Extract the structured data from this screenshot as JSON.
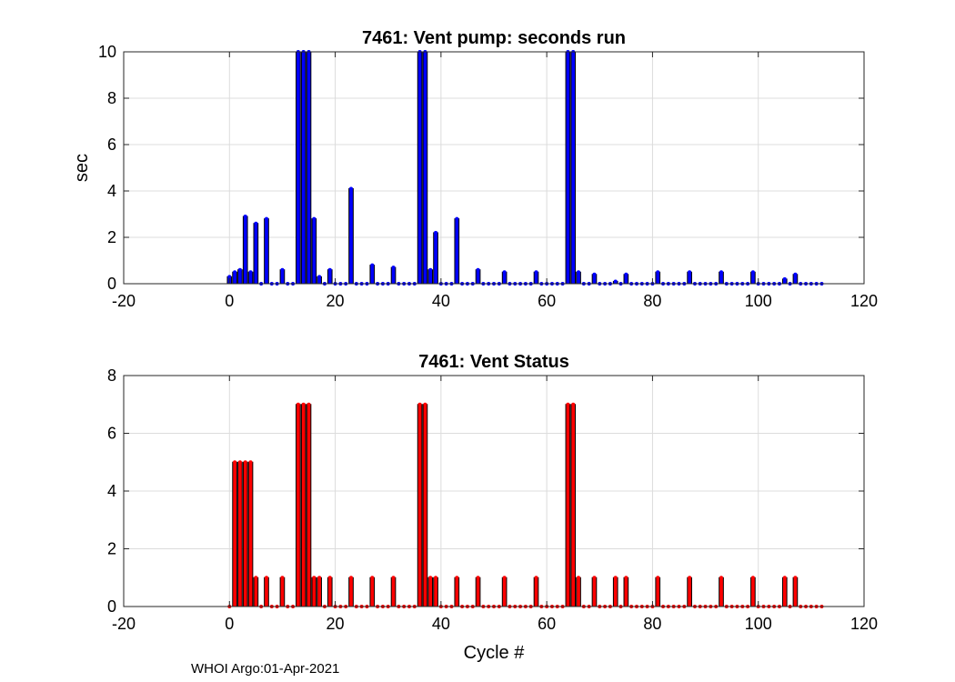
{
  "chart_data": [
    {
      "type": "bar",
      "title": "7461: Vent pump: seconds run",
      "xlabel": "",
      "ylabel": "sec",
      "xlim": [
        -20,
        120
      ],
      "ylim": [
        0,
        10
      ],
      "xticks": [
        "-20",
        "0",
        "20",
        "40",
        "60",
        "80",
        "100",
        "120"
      ],
      "yticks": [
        "0",
        "2",
        "4",
        "6",
        "8",
        "10"
      ],
      "grid": true,
      "color": "#0000ff",
      "x": [
        0,
        1,
        2,
        3,
        4,
        5,
        6,
        7,
        8,
        9,
        10,
        11,
        12,
        13,
        14,
        15,
        16,
        17,
        18,
        19,
        20,
        21,
        22,
        23,
        24,
        25,
        26,
        27,
        28,
        29,
        30,
        31,
        32,
        33,
        34,
        35,
        36,
        37,
        38,
        39,
        40,
        41,
        42,
        43,
        44,
        45,
        46,
        47,
        48,
        49,
        50,
        51,
        52,
        53,
        54,
        55,
        56,
        57,
        58,
        59,
        60,
        61,
        62,
        63,
        64,
        65,
        66,
        67,
        68,
        69,
        70,
        71,
        72,
        73,
        74,
        75,
        76,
        77,
        78,
        79,
        80,
        81,
        82,
        83,
        84,
        85,
        86,
        87,
        88,
        89,
        90,
        91,
        92,
        93,
        94,
        95,
        96,
        97,
        98,
        99,
        100,
        101,
        102,
        103,
        104,
        105,
        106,
        107,
        108,
        109,
        110,
        111,
        112
      ],
      "values": [
        0.3,
        0.5,
        0.6,
        2.9,
        0.5,
        2.6,
        0,
        2.8,
        0,
        0,
        0.6,
        0,
        0,
        10,
        10,
        10,
        2.8,
        0.3,
        0,
        0.6,
        0,
        0,
        0,
        4.1,
        0,
        0,
        0,
        0.8,
        0,
        0,
        0,
        0.7,
        0,
        0,
        0,
        0,
        10,
        10,
        0.6,
        2.2,
        0,
        0,
        0,
        2.8,
        0,
        0,
        0,
        0.6,
        0,
        0,
        0,
        0,
        0.5,
        0,
        0,
        0,
        0,
        0,
        0.5,
        0,
        0,
        0,
        0,
        0,
        10,
        10,
        0.5,
        0,
        0,
        0.4,
        0,
        0,
        0,
        0.1,
        0,
        0.4,
        0,
        0,
        0,
        0,
        0,
        0.5,
        0,
        0,
        0,
        0,
        0,
        0.5,
        0,
        0,
        0,
        0,
        0,
        0.5,
        0,
        0,
        0,
        0,
        0,
        0.5,
        0,
        0,
        0,
        0,
        0,
        0.2,
        0,
        0.4,
        0,
        0,
        0,
        0,
        0
      ]
    },
    {
      "type": "bar",
      "title": "7461: Vent Status",
      "xlabel": "Cycle #",
      "ylabel": "",
      "xlim": [
        -20,
        120
      ],
      "ylim": [
        0,
        8
      ],
      "xticks": [
        "-20",
        "0",
        "20",
        "40",
        "60",
        "80",
        "100",
        "120"
      ],
      "yticks": [
        "0",
        "2",
        "4",
        "6",
        "8"
      ],
      "grid": true,
      "color": "#ff0000",
      "x": [
        0,
        1,
        2,
        3,
        4,
        5,
        6,
        7,
        8,
        9,
        10,
        11,
        12,
        13,
        14,
        15,
        16,
        17,
        18,
        19,
        20,
        21,
        22,
        23,
        24,
        25,
        26,
        27,
        28,
        29,
        30,
        31,
        32,
        33,
        34,
        35,
        36,
        37,
        38,
        39,
        40,
        41,
        42,
        43,
        44,
        45,
        46,
        47,
        48,
        49,
        50,
        51,
        52,
        53,
        54,
        55,
        56,
        57,
        58,
        59,
        60,
        61,
        62,
        63,
        64,
        65,
        66,
        67,
        68,
        69,
        70,
        71,
        72,
        73,
        74,
        75,
        76,
        77,
        78,
        79,
        80,
        81,
        82,
        83,
        84,
        85,
        86,
        87,
        88,
        89,
        90,
        91,
        92,
        93,
        94,
        95,
        96,
        97,
        98,
        99,
        100,
        101,
        102,
        103,
        104,
        105,
        106,
        107,
        108,
        109,
        110,
        111,
        112
      ],
      "values": [
        0,
        5,
        5,
        5,
        5,
        1,
        0,
        1,
        0,
        0,
        1,
        0,
        0,
        7,
        7,
        7,
        1,
        1,
        0,
        1,
        0,
        0,
        0,
        1,
        0,
        0,
        0,
        1,
        0,
        0,
        0,
        1,
        0,
        0,
        0,
        0,
        7,
        7,
        1,
        1,
        0,
        0,
        0,
        1,
        0,
        0,
        0,
        1,
        0,
        0,
        0,
        0,
        1,
        0,
        0,
        0,
        0,
        0,
        1,
        0,
        0,
        0,
        0,
        0,
        7,
        7,
        1,
        0,
        0,
        1,
        0,
        0,
        0,
        1,
        0,
        1,
        0,
        0,
        0,
        0,
        0,
        1,
        0,
        0,
        0,
        0,
        0,
        1,
        0,
        0,
        0,
        0,
        0,
        1,
        0,
        0,
        0,
        0,
        0,
        1,
        0,
        0,
        0,
        0,
        0,
        1,
        0,
        1,
        0,
        0,
        0,
        0,
        0
      ]
    }
  ],
  "footer": "WHOI Argo:01-Apr-2021"
}
